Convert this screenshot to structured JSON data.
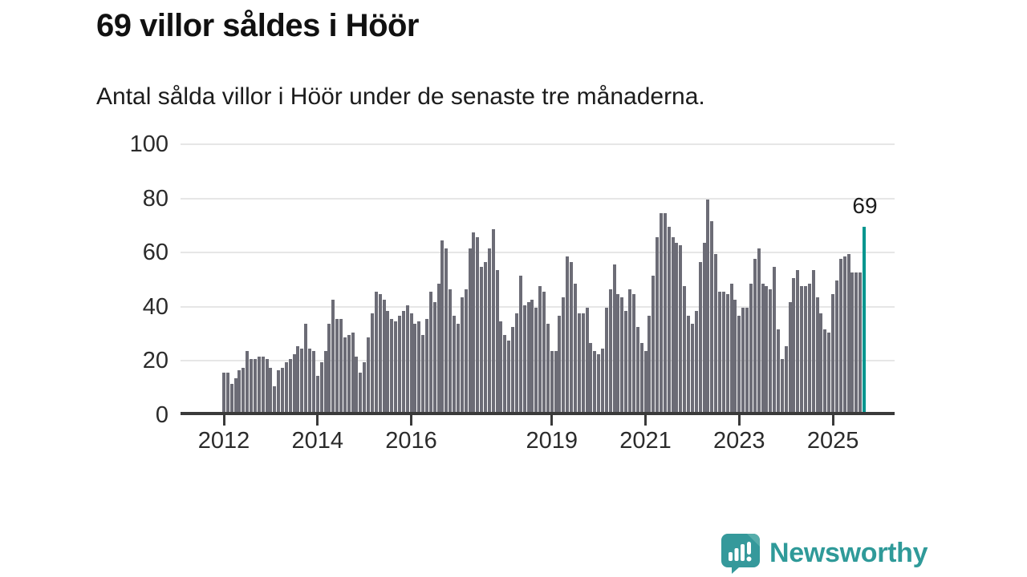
{
  "header": {
    "title": "69 villor såldes i Höör",
    "subtitle": "Antal sålda villor i Höör under de senaste tre månaderna."
  },
  "annotation": {
    "last_value_label": "69"
  },
  "branding": {
    "name": "Newsworthy",
    "icon": "newsworthy-chart-bubble-icon",
    "text_color": "#2f9a99",
    "icon_color": "#35999b",
    "icon_fold_color": "#57adab"
  },
  "colors": {
    "bar": "#6c6c76",
    "highlight": "#00968f",
    "gridline": "#e6e6e6",
    "axis": "#3a3a3a",
    "text": "#1f1f1f"
  },
  "chart_data": {
    "type": "bar",
    "title": "69 villor såldes i Höör",
    "subtitle": "Antal sålda villor i Höör under de senaste tre månaderna.",
    "frequency": "monthly",
    "start_year": 2012,
    "start_month": 1,
    "ylim": [
      0,
      100
    ],
    "yticks": [
      0,
      20,
      40,
      60,
      80,
      100
    ],
    "grid": true,
    "xtick_years": [
      2012,
      2014,
      2016,
      2019,
      2021,
      2023,
      2025
    ],
    "xtick_labels": [
      "2012",
      "2014",
      "2016",
      "2019",
      "2021",
      "2023",
      "2025"
    ],
    "highlight_last": true,
    "highlight_value": 69,
    "series": [
      {
        "year": 2012,
        "monthly": [
          15,
          15,
          11,
          13,
          16,
          17,
          23,
          20,
          20,
          21,
          21,
          20
        ]
      },
      {
        "year": 2013,
        "monthly": [
          17,
          10,
          16,
          17,
          19,
          20,
          22,
          25,
          24,
          33,
          24,
          23
        ]
      },
      {
        "year": 2014,
        "monthly": [
          14,
          19,
          23,
          33,
          42,
          35,
          35,
          28,
          29,
          30,
          21,
          15
        ]
      },
      {
        "year": 2015,
        "monthly": [
          19,
          28,
          37,
          45,
          44,
          42,
          38,
          35,
          34,
          36,
          38,
          40
        ]
      },
      {
        "year": 2016,
        "monthly": [
          37,
          33,
          34,
          29,
          35,
          45,
          41,
          48,
          64,
          61,
          46,
          36
        ]
      },
      {
        "year": 2017,
        "monthly": [
          33,
          43,
          46,
          61,
          67,
          65,
          54,
          56,
          61,
          68,
          53,
          34
        ]
      },
      {
        "year": 2018,
        "monthly": [
          29,
          27,
          32,
          37,
          51,
          40,
          41,
          42,
          39,
          47,
          45,
          33
        ]
      },
      {
        "year": 2019,
        "monthly": [
          23,
          23,
          36,
          43,
          58,
          56,
          48,
          37,
          37,
          39,
          26,
          23
        ]
      },
      {
        "year": 2020,
        "monthly": [
          22,
          24,
          39,
          46,
          55,
          44,
          43,
          38,
          46,
          44,
          32,
          26
        ]
      },
      {
        "year": 2021,
        "monthly": [
          23,
          36,
          51,
          65,
          74,
          74,
          69,
          65,
          63,
          62,
          47,
          36
        ]
      },
      {
        "year": 2022,
        "monthly": [
          33,
          38,
          56,
          63,
          79,
          71,
          59,
          45,
          45,
          44,
          48,
          42
        ]
      },
      {
        "year": 2023,
        "monthly": [
          36,
          39,
          39,
          48,
          57,
          61,
          48,
          47,
          46,
          54,
          31,
          20
        ]
      },
      {
        "year": 2024,
        "monthly": [
          25,
          41,
          50,
          53,
          47,
          47,
          48,
          53,
          43,
          37,
          31,
          30
        ]
      },
      {
        "year": 2025,
        "monthly": [
          44,
          49,
          57,
          58,
          59,
          52,
          52,
          52,
          69
        ]
      }
    ]
  }
}
